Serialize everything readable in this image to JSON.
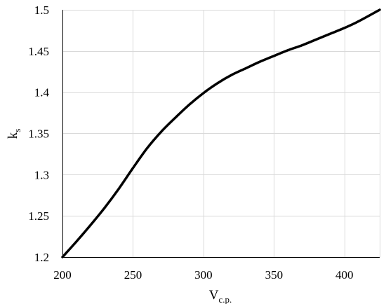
{
  "chart_data": {
    "type": "line",
    "xlabel": {
      "main": "V",
      "sub": "c.p."
    },
    "ylabel": {
      "main": "k",
      "sub": "s"
    },
    "xlim": [
      200,
      425
    ],
    "ylim": [
      1.2,
      1.5
    ],
    "x_ticks": [
      200,
      250,
      300,
      350,
      400
    ],
    "x_tick_labels": [
      "200",
      "250",
      "300",
      "350",
      "400"
    ],
    "y_ticks": [
      1.2,
      1.25,
      1.3,
      1.35,
      1.4,
      1.45,
      1.5
    ],
    "y_tick_labels": [
      "1.2",
      "1.25",
      "1.3",
      "1.35",
      "1.4",
      "1.45",
      "1.5"
    ],
    "grid": "on",
    "legend": "none",
    "colors": {
      "line": "#000000",
      "grid": "#d9d9d9",
      "axis": "#000000"
    },
    "series": [
      {
        "x": [
          200,
          210,
          220,
          230,
          240,
          250,
          260,
          270,
          280,
          290,
          300,
          310,
          320,
          330,
          340,
          350,
          360,
          370,
          380,
          390,
          400,
          410,
          425
        ],
        "y": [
          1.2,
          1.219,
          1.239,
          1.26,
          1.283,
          1.308,
          1.332,
          1.352,
          1.369,
          1.385,
          1.399,
          1.411,
          1.421,
          1.429,
          1.437,
          1.444,
          1.451,
          1.457,
          1.464,
          1.471,
          1.478,
          1.486,
          1.5
        ]
      }
    ]
  }
}
